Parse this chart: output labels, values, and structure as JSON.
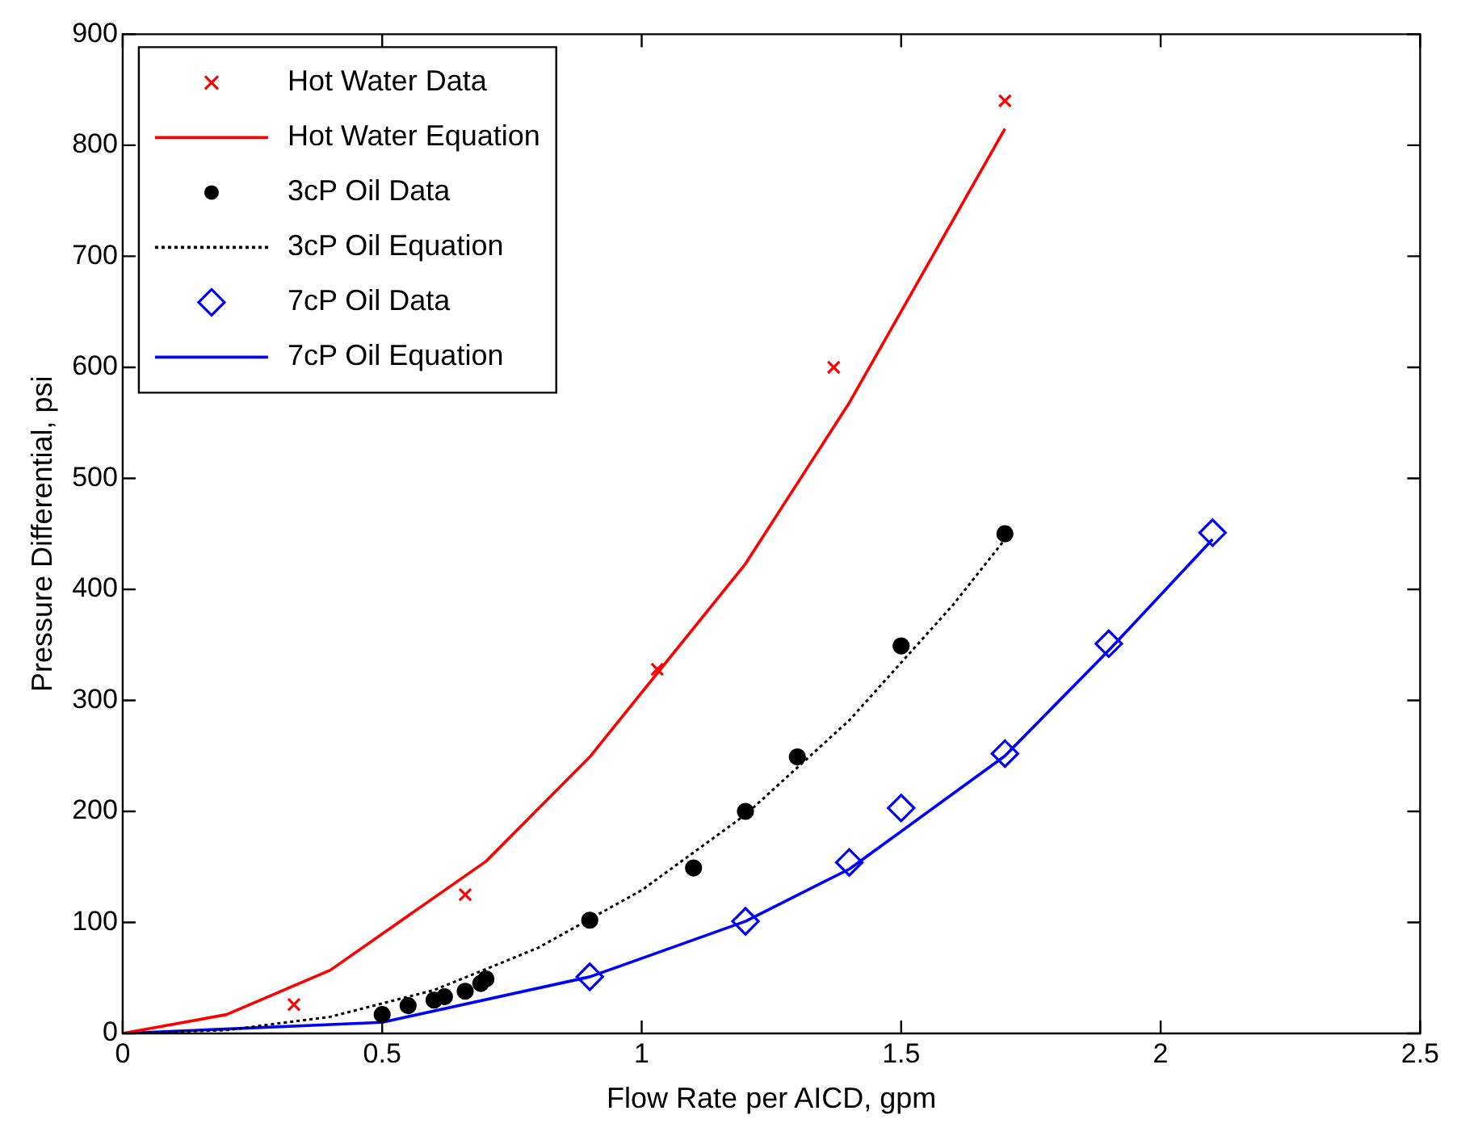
{
  "chart_data": {
    "type": "scatter",
    "xlabel": "Flow Rate per AICD, gpm",
    "ylabel": "Pressure Differential, psi",
    "xlim": [
      0,
      2.5
    ],
    "xticks": [
      0,
      0.5,
      1,
      1.5,
      2,
      2.5
    ],
    "ylim": [
      0,
      900
    ],
    "yticks": [
      0,
      100,
      200,
      300,
      400,
      500,
      600,
      700,
      800,
      900
    ],
    "grid": false,
    "legend": "top left",
    "series": [
      {
        "name": "Hot Water Data",
        "type": "scatter",
        "marker": "cross",
        "color": "#ff0000",
        "x": [
          0.33,
          0.66,
          1.03,
          1.37,
          1.7
        ],
        "values": [
          26,
          125,
          328,
          600,
          840
        ]
      },
      {
        "name": "Hot Water Equation",
        "type": "line",
        "marker": "none",
        "line_style": "solid",
        "color": "#ff0000",
        "x": [
          0,
          0.2,
          0.4,
          0.7,
          0.9,
          1.2,
          1.4,
          1.7
        ],
        "values": [
          0,
          17,
          57,
          155,
          249,
          423,
          568,
          815
        ]
      },
      {
        "name": "3cP Oil Data",
        "type": "scatter",
        "marker": "circle",
        "color": "#000000",
        "x": [
          0.5,
          0.55,
          0.6,
          0.62,
          0.66,
          0.69,
          0.7,
          0.9,
          1.1,
          1.2,
          1.3,
          1.5,
          1.7
        ],
        "values": [
          17,
          25,
          30,
          33,
          38,
          45,
          49,
          102,
          149,
          200,
          249,
          349,
          450
        ]
      },
      {
        "name": "3cP Oil Equation",
        "type": "line",
        "marker": "none",
        "line_style": "dotted",
        "color": "#000000",
        "x": [
          0,
          0.2,
          0.4,
          0.6,
          0.8,
          1,
          1.2,
          1.4,
          1.6,
          1.7
        ],
        "values": [
          0,
          3,
          15,
          39,
          77,
          129,
          197,
          282,
          386,
          445
        ]
      },
      {
        "name": "7cP Oil Data",
        "type": "scatter",
        "marker": "diamond",
        "color": "#0000ff",
        "x": [
          0.9,
          1.2,
          1.4,
          1.5,
          1.7,
          1.9,
          2.1
        ],
        "values": [
          51,
          101,
          154,
          203,
          252,
          351,
          451
        ]
      },
      {
        "name": "7cP Oil Equation",
        "type": "line",
        "marker": "none",
        "line_style": "solid",
        "color": "#0000ff",
        "x": [
          0,
          0.5,
          0.9,
          1.2,
          1.4,
          1.7,
          1.9,
          2.1
        ],
        "values": [
          0,
          10,
          51,
          101,
          148,
          250,
          345,
          445
        ]
      }
    ]
  }
}
